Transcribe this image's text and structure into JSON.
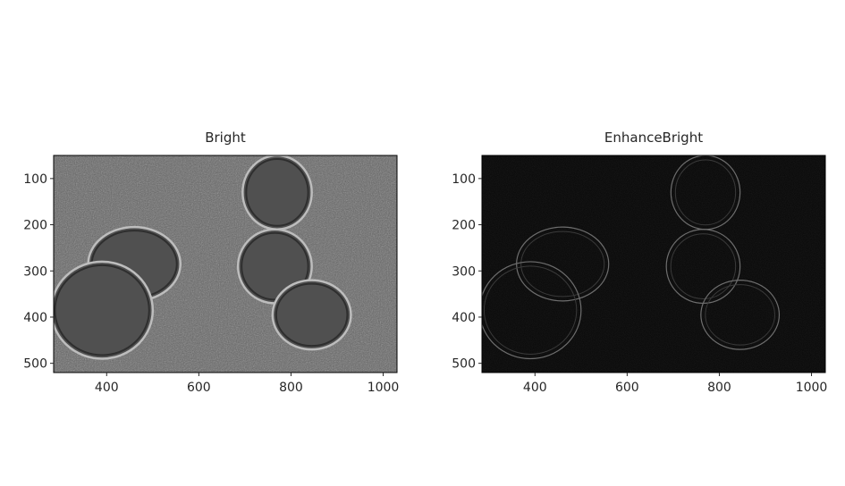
{
  "chart_data": [
    {
      "type": "image",
      "title": "Bright",
      "colormap": "gray",
      "background_color": "#636363",
      "xlim": [
        285,
        1030
      ],
      "ylim": [
        520,
        50
      ],
      "xticks": [
        400,
        600,
        800,
        1000
      ],
      "yticks": [
        100,
        200,
        300,
        400,
        500
      ],
      "cells": [
        {
          "name": "upper-left",
          "cx": 460,
          "cy": 285,
          "rx": 100,
          "ry": 80
        },
        {
          "name": "lower-left",
          "cx": 390,
          "cy": 385,
          "rx": 110,
          "ry": 105
        },
        {
          "name": "top-middle",
          "cx": 770,
          "cy": 130,
          "rx": 75,
          "ry": 80
        },
        {
          "name": "middle",
          "cx": 765,
          "cy": 290,
          "rx": 80,
          "ry": 80
        },
        {
          "name": "lower-right",
          "cx": 845,
          "cy": 395,
          "rx": 85,
          "ry": 75
        }
      ]
    },
    {
      "type": "image",
      "title": "EnhanceBright",
      "colormap": "gray",
      "background_color": "#050505",
      "xlim": [
        285,
        1030
      ],
      "ylim": [
        520,
        50
      ],
      "xticks": [
        400,
        600,
        800,
        1000
      ],
      "yticks": [
        100,
        200,
        300,
        400,
        500
      ],
      "cells": [
        {
          "name": "upper-left",
          "cx": 460,
          "cy": 285,
          "rx": 100,
          "ry": 80
        },
        {
          "name": "lower-left",
          "cx": 390,
          "cy": 385,
          "rx": 110,
          "ry": 105
        },
        {
          "name": "top-middle",
          "cx": 770,
          "cy": 130,
          "rx": 75,
          "ry": 80
        },
        {
          "name": "middle",
          "cx": 765,
          "cy": 290,
          "rx": 80,
          "ry": 80
        },
        {
          "name": "lower-right",
          "cx": 845,
          "cy": 395,
          "rx": 85,
          "ry": 75
        }
      ]
    }
  ]
}
